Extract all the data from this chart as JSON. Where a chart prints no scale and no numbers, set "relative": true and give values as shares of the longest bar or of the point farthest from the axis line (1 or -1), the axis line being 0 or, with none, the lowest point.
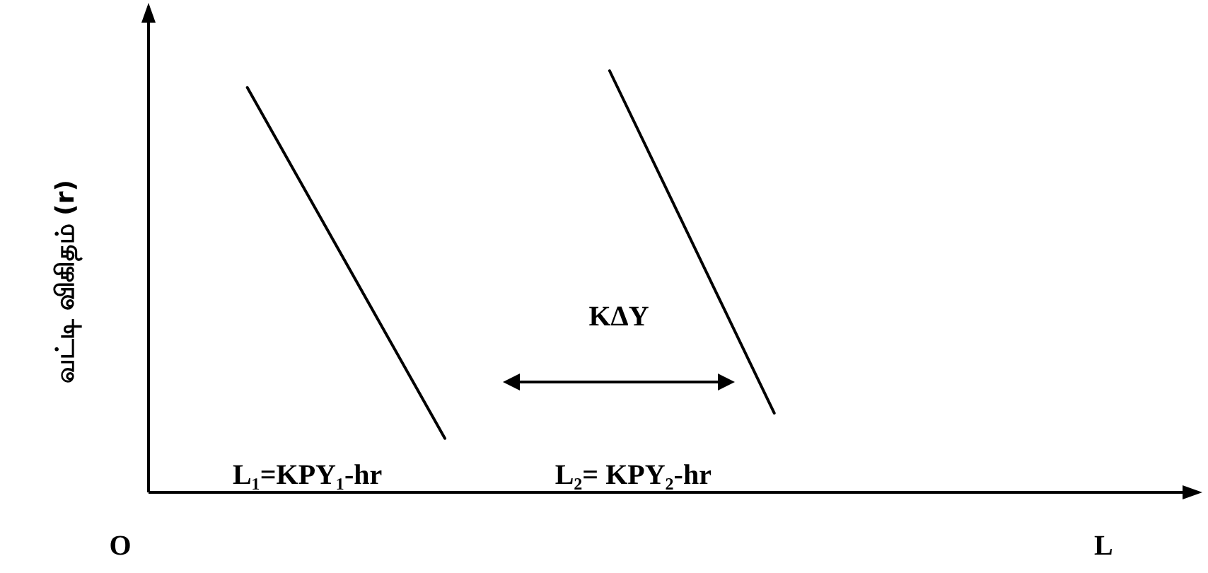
{
  "chart_data": {
    "type": "line",
    "relative": true,
    "xlabel": "L",
    "ylabel": "வட்டி விகிதம் (r)",
    "categories": [
      null,
      null,
      null,
      null,
      null,
      null,
      null,
      null,
      null,
      null,
      null,
      null,
      null,
      null,
      null,
      null,
      null,
      null,
      null,
      null,
      null,
      null,
      null,
      null,
      null,
      null,
      null,
      null,
      null,
      null,
      null,
      null,
      null
    ],
    "marker": "none",
    "line_style": "solid",
    "series": [
      {
        "name": "L₁=KPY₁-hr",
        "color": "#000000",
        "values": [
          null,
          null,
          null,
          0.96,
          null,
          null,
          null,
          null,
          null,
          0.128,
          null,
          null,
          null,
          null,
          null,
          null,
          null,
          null,
          null,
          null,
          null,
          null,
          null,
          null,
          null,
          null,
          null,
          null,
          null,
          null,
          null,
          null,
          null
        ]
      },
      {
        "name": "L₂= KPY₂-hr",
        "color": "#000000",
        "values": [
          null,
          null,
          null,
          null,
          null,
          null,
          null,
          null,
          null,
          null,
          null,
          null,
          null,
          null,
          1,
          null,
          null,
          null,
          null,
          0.188,
          null,
          null,
          null,
          null,
          null,
          null,
          null,
          null,
          null,
          null,
          null,
          null,
          null
        ]
      }
    ],
    "annotations": [
      "O",
      "KΔY"
    ]
  }
}
